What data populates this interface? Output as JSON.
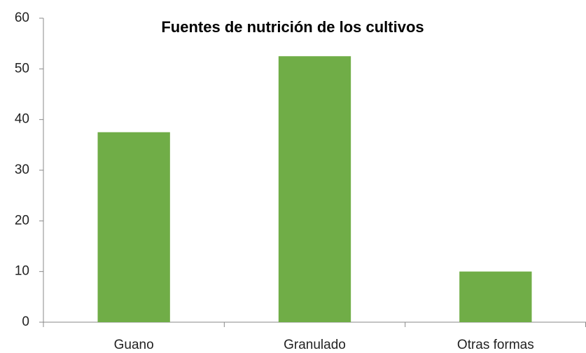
{
  "chart_data": {
    "type": "bar",
    "title": "Fuentes de nutrición de los cultivos",
    "categories": [
      "Guano",
      "Granulado",
      "Otras formas"
    ],
    "values": [
      37.5,
      52.5,
      10
    ],
    "color": "#70ad47",
    "ylim": [
      0,
      60
    ],
    "yticks": [
      0,
      10,
      20,
      30,
      40,
      50,
      60
    ],
    "grid": false
  }
}
